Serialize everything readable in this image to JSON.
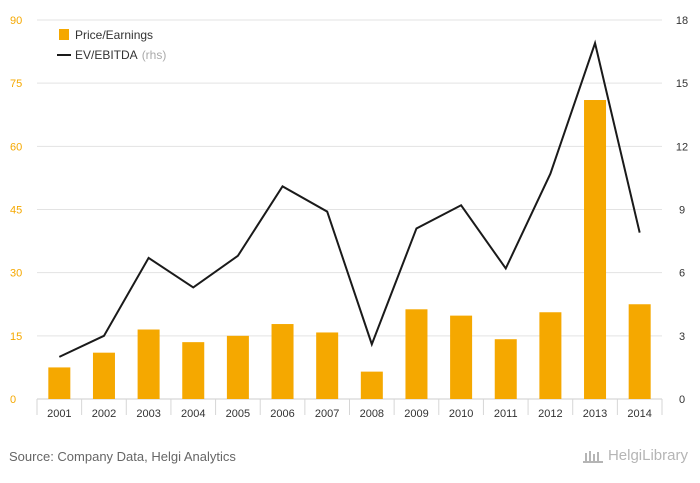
{
  "chart_data": {
    "type": "bar+line",
    "categories": [
      "2001",
      "2002",
      "2003",
      "2004",
      "2005",
      "2006",
      "2007",
      "2008",
      "2009",
      "2010",
      "2011",
      "2012",
      "2013",
      "2014"
    ],
    "series": [
      {
        "name": "Price/Earnings",
        "type": "bar",
        "axis": "left",
        "color": "#f5a800",
        "values": [
          7.5,
          11,
          16.5,
          13.5,
          15,
          17.8,
          15.8,
          6.5,
          21.3,
          19.8,
          14.2,
          20.6,
          71,
          22.5
        ]
      },
      {
        "name": "EV/EBITDA",
        "name_suffix": "(rhs)",
        "type": "line",
        "axis": "right",
        "color": "#1a1a1a",
        "values": [
          2.0,
          3.0,
          6.7,
          5.3,
          6.8,
          10.1,
          8.9,
          2.6,
          8.1,
          9.2,
          6.2,
          10.7,
          16.9,
          7.9
        ]
      }
    ],
    "y_left": {
      "min": 0,
      "max": 90,
      "ticks": [
        "0",
        "15",
        "30",
        "45",
        "60",
        "75",
        "90"
      ]
    },
    "y_right": {
      "min": 0,
      "max": 18,
      "ticks": [
        "0",
        "3",
        "6",
        "9",
        "12",
        "15",
        "18"
      ]
    },
    "grid": true,
    "legend": "top-left",
    "title": "",
    "xlabel": "",
    "ylabel": ""
  },
  "footer": {
    "source": "Source: Company Data, Helgi Analytics",
    "brand": "HelgiLibrary"
  },
  "colors": {
    "left_axis_text": "#f5a800",
    "right_axis_text": "#333333",
    "grid": "#e3e3e3"
  }
}
